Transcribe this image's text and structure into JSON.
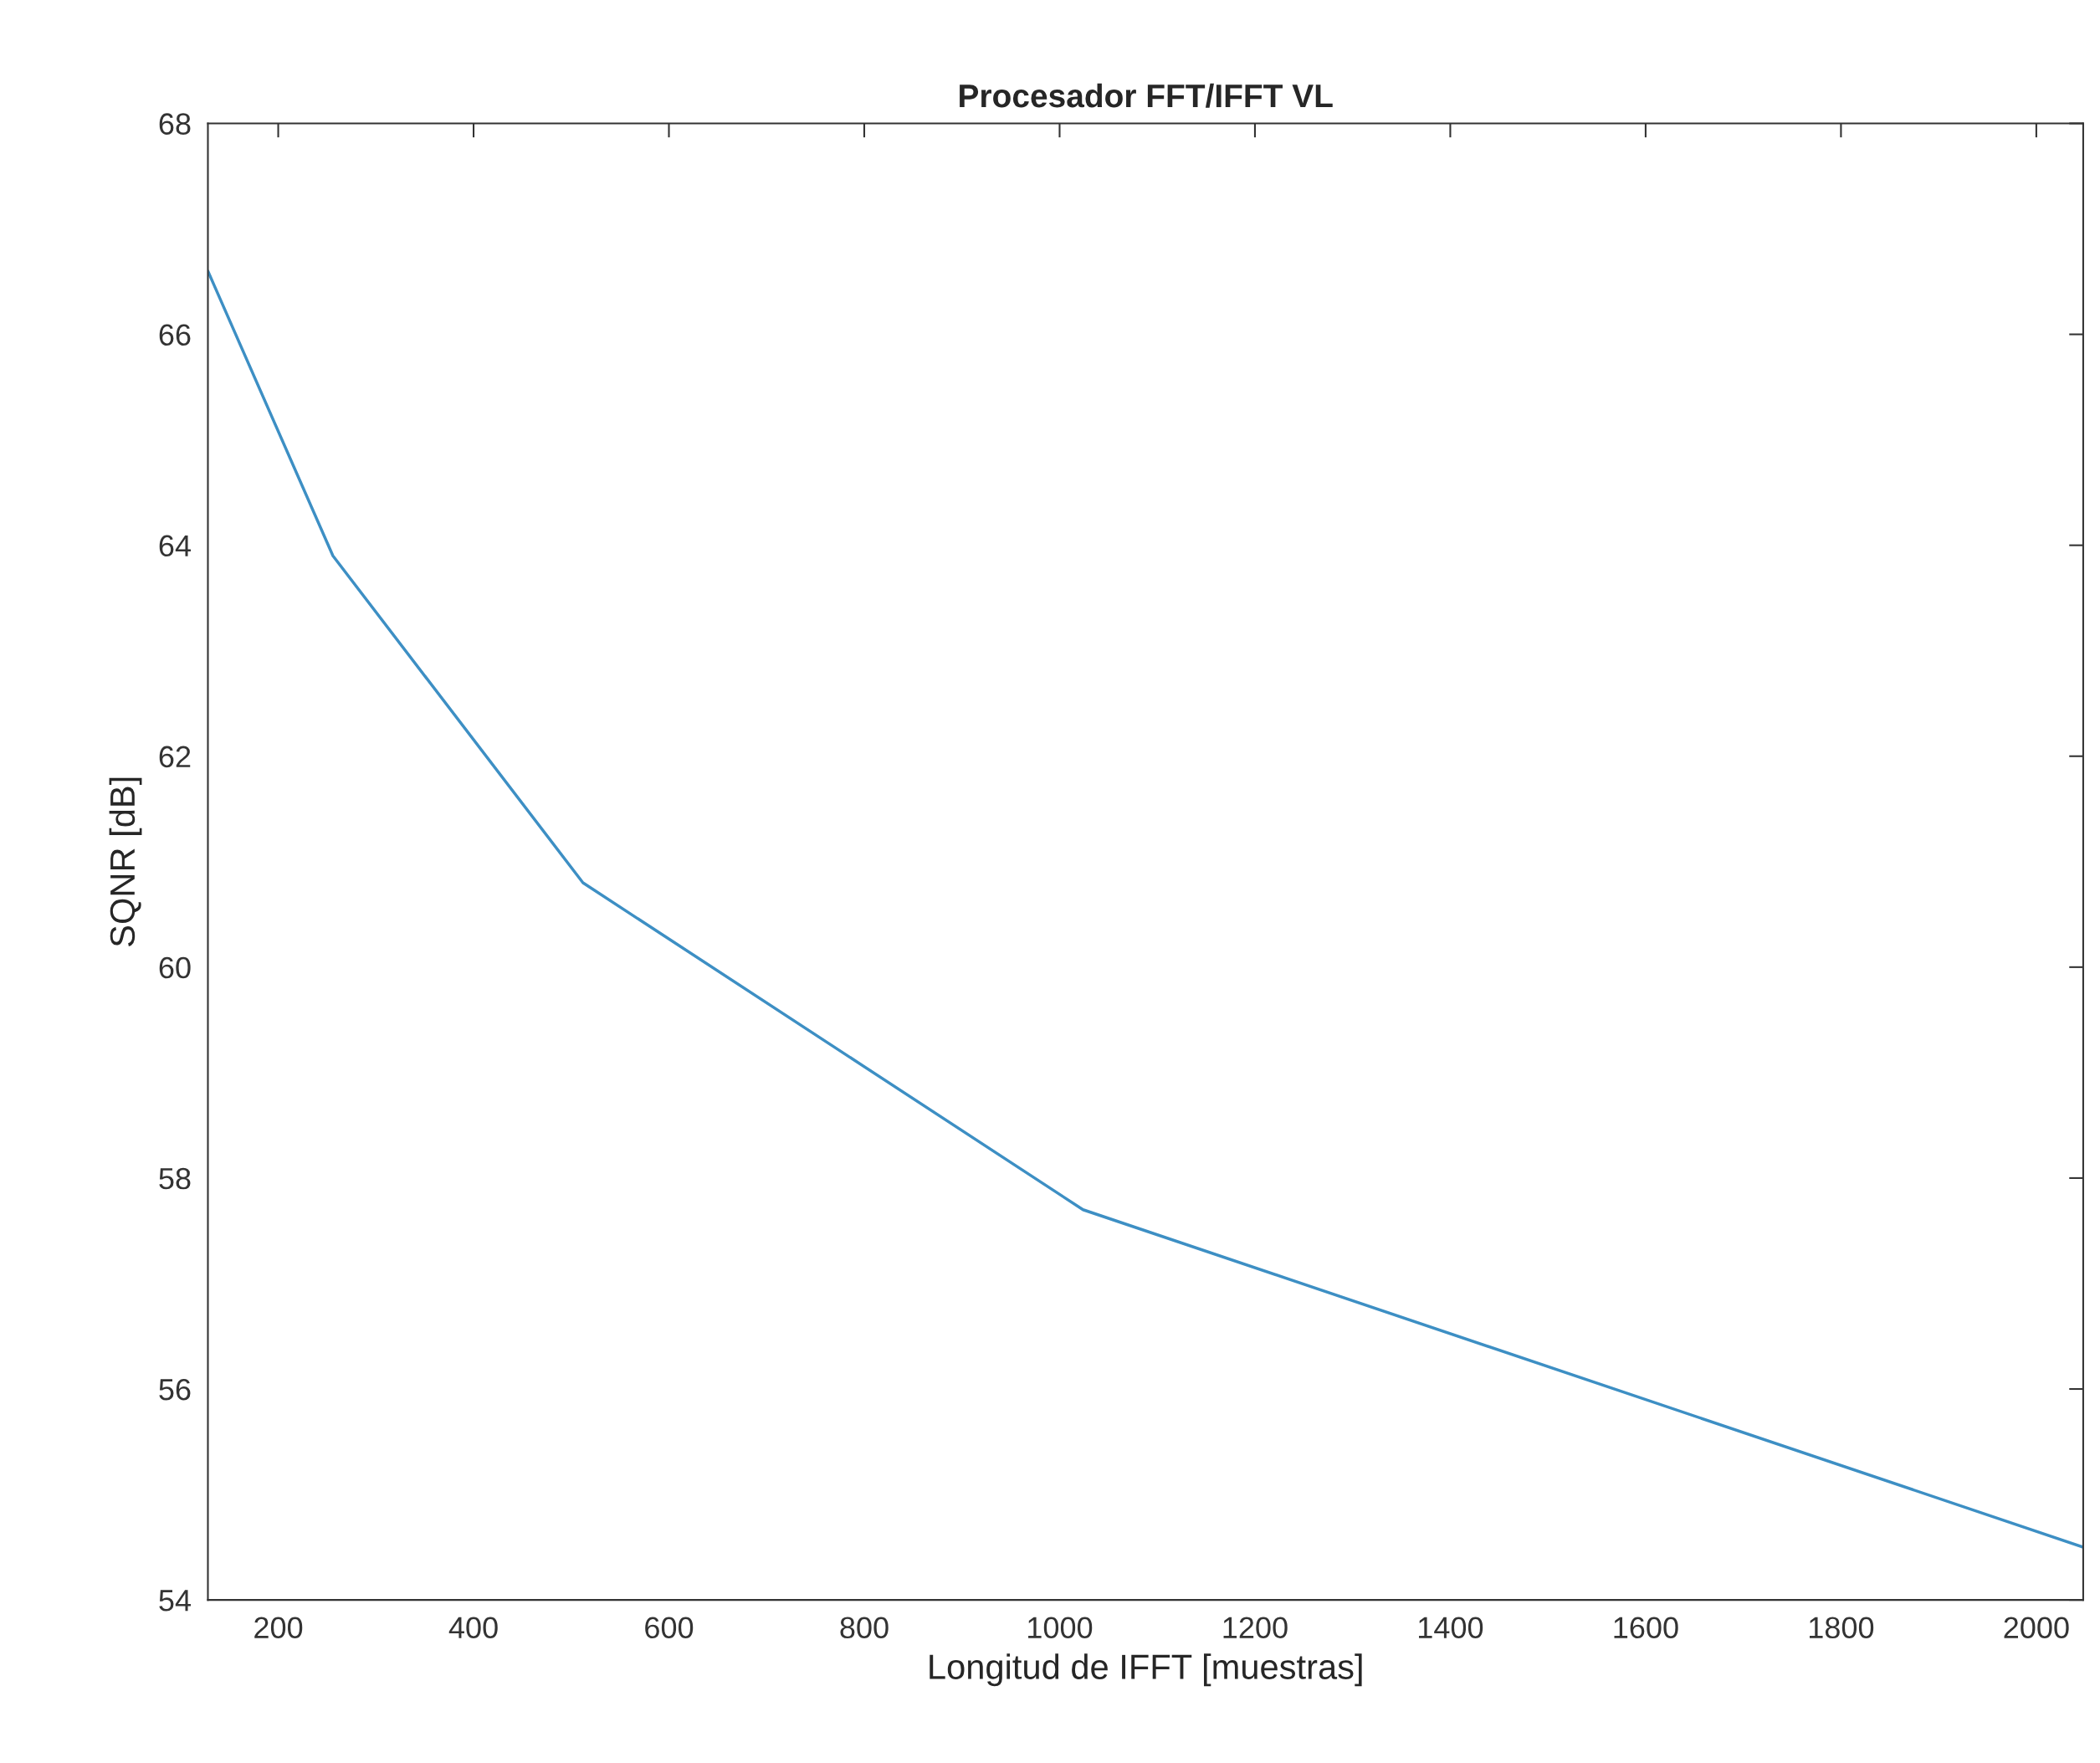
{
  "chart_data": {
    "type": "line",
    "title": "Procesador FFT/IFFT VL",
    "xlabel": "Longitud de IFFT [muestras]",
    "ylabel": "SQNR [dB]",
    "x": [
      128,
      256,
      512,
      1024,
      2048
    ],
    "series": [
      {
        "color": "#3d8fc4",
        "values": [
          66.6,
          63.9,
          60.8,
          57.7,
          54.5
        ]
      }
    ],
    "xlim": [
      128,
      2048
    ],
    "ylim": [
      54,
      68
    ],
    "xticks": [
      200,
      400,
      600,
      800,
      1000,
      1200,
      1400,
      1600,
      1800,
      2000
    ],
    "yticks": [
      54,
      56,
      58,
      60,
      62,
      64,
      66,
      68
    ],
    "grid": false,
    "legend": false
  }
}
